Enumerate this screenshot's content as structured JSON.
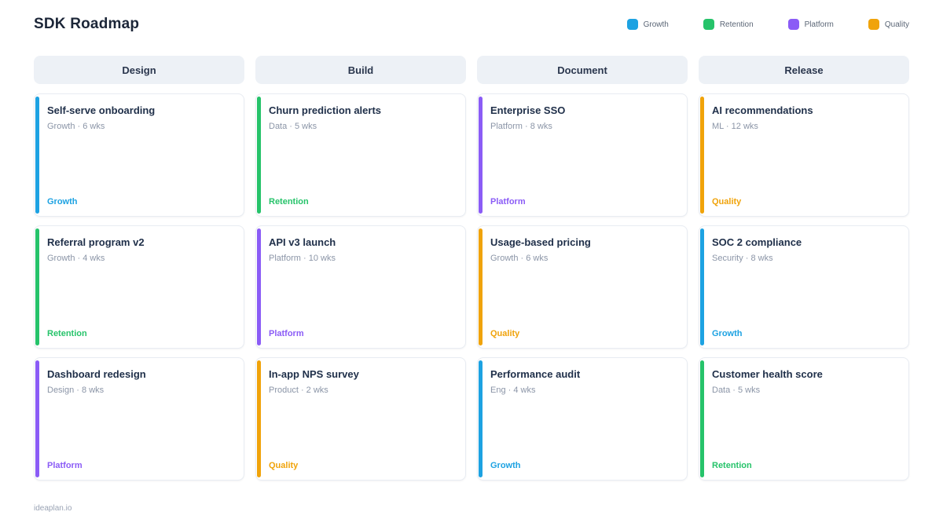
{
  "title": "SDK Roadmap",
  "footer": "ideaplan.io",
  "category_colors": {
    "Growth": "#1da2e2",
    "Retention": "#26c36a",
    "Platform": "#8b5cf6",
    "Quality": "#f0a30a"
  },
  "legend": [
    {
      "label": "Growth"
    },
    {
      "label": "Retention"
    },
    {
      "label": "Platform"
    },
    {
      "label": "Quality"
    }
  ],
  "columns": [
    {
      "header": "Design",
      "cards": [
        {
          "title": "Self-serve onboarding",
          "meta": "Growth · 6 wks",
          "tag": "Growth"
        },
        {
          "title": "Referral program v2",
          "meta": "Growth · 4 wks",
          "tag": "Retention"
        },
        {
          "title": "Dashboard redesign",
          "meta": "Design · 8 wks",
          "tag": "Platform"
        }
      ]
    },
    {
      "header": "Build",
      "cards": [
        {
          "title": "Churn prediction alerts",
          "meta": "Data · 5 wks",
          "tag": "Retention"
        },
        {
          "title": "API v3 launch",
          "meta": "Platform · 10 wks",
          "tag": "Platform"
        },
        {
          "title": "In-app NPS survey",
          "meta": "Product · 2 wks",
          "tag": "Quality"
        }
      ]
    },
    {
      "header": "Document",
      "cards": [
        {
          "title": "Enterprise SSO",
          "meta": "Platform · 8 wks",
          "tag": "Platform"
        },
        {
          "title": "Usage-based pricing",
          "meta": "Growth · 6 wks",
          "tag": "Quality"
        },
        {
          "title": "Performance audit",
          "meta": "Eng · 4 wks",
          "tag": "Growth"
        }
      ]
    },
    {
      "header": "Release",
      "cards": [
        {
          "title": "AI recommendations",
          "meta": "ML · 12 wks",
          "tag": "Quality"
        },
        {
          "title": "SOC 2 compliance",
          "meta": "Security · 8 wks",
          "tag": "Growth"
        },
        {
          "title": "Customer health score",
          "meta": "Data · 5 wks",
          "tag": "Retention"
        }
      ]
    }
  ]
}
